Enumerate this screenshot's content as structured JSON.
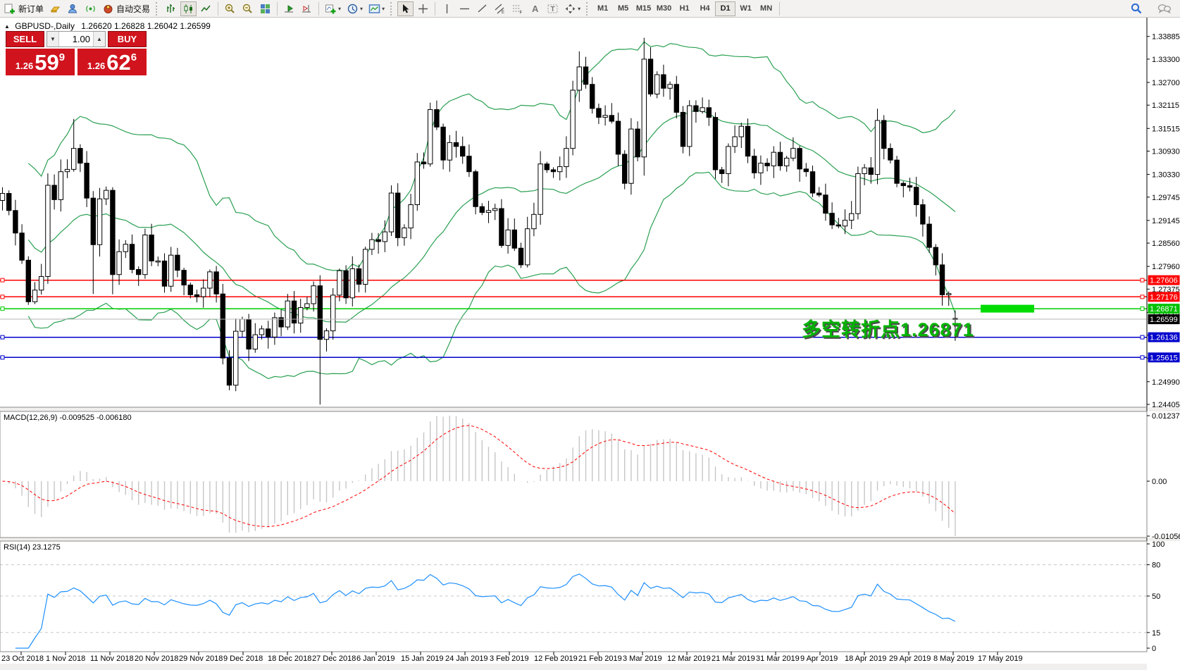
{
  "toolbar": {
    "new_order_label": "新订单",
    "autotrading_label": "自动交易",
    "timeframes": [
      "M1",
      "M5",
      "M15",
      "M30",
      "H1",
      "H4",
      "D1",
      "W1",
      "MN"
    ],
    "active_timeframe": "D1"
  },
  "chart": {
    "symbol_header": "GBPUSD-,Daily",
    "ohlc_line": "1.26620 1.26828 1.26042 1.26599",
    "trade_panel": {
      "sell_label": "SELL",
      "buy_label": "BUY",
      "volume": "1.00",
      "sell_price_prefix": "1.26",
      "sell_price_big": "59",
      "sell_price_sup": "9",
      "buy_price_prefix": "1.26",
      "buy_price_big": "62",
      "buy_price_sup": "6"
    }
  },
  "indicators": {
    "macd": {
      "label": "MACD(12,26,9) -0.009525 -0.006180",
      "axis": [
        "0.012371",
        "0.00",
        "-0.010568"
      ]
    },
    "rsi": {
      "label": "RSI(14) 23.1275",
      "axis": [
        [
          100,
          "100"
        ],
        [
          80,
          "80"
        ],
        [
          50,
          "50"
        ],
        [
          15,
          "15"
        ],
        [
          0,
          "0"
        ]
      ]
    }
  },
  "chart_data": {
    "type": "candlestick",
    "symbol": "GBPUSD-",
    "timeframe": "Daily",
    "last_ohlc": {
      "open": 1.2662,
      "high": 1.26828,
      "low": 1.26042,
      "close": 1.26599
    },
    "bid": {
      "price": 1.26599,
      "label": "1.26599",
      "line_color": "#b4b4b4",
      "label_bg": "#000000"
    },
    "annotation": {
      "text": "多空转折点1.26871",
      "price": 1.26871,
      "color": "#00b400"
    },
    "highlight_box": {
      "price": 1.26871,
      "color": "#00dc00"
    },
    "hlines": [
      {
        "price": 1.27606,
        "label": "1.27606",
        "color": "#ff0000"
      },
      {
        "price": 1.27176,
        "label": "1.27176",
        "color": "#ff0000"
      },
      {
        "price": 1.26871,
        "label": "1.26871",
        "color": "#00cc00"
      },
      {
        "price": 1.26136,
        "label": "1.26136",
        "color": "#0000cc"
      },
      {
        "price": 1.25615,
        "label": "1.25615",
        "color": "#0000cc"
      }
    ],
    "price_ticks": [
      1.33885,
      1.333,
      1.327,
      1.32115,
      1.31515,
      1.3093,
      1.3033,
      1.29745,
      1.29145,
      1.2856,
      1.2796,
      1.27375,
      1.26775,
      1.2619,
      1.2559,
      1.2499,
      1.24405
    ],
    "dates": [
      "23 Oct 2018",
      "1 Nov 2018",
      "11 Nov 2018",
      "20 Nov 2018",
      "29 Nov 2018",
      "9 Dec 2018",
      "18 Dec 2018",
      "27 Dec 2018",
      "6 Jan 2019",
      "15 Jan 2019",
      "24 Jan 2019",
      "3 Feb 2019",
      "12 Feb 2019",
      "21 Feb 2019",
      "3 Mar 2019",
      "12 Mar 2019",
      "21 Mar 2019",
      "31 Mar 2019",
      "9 Apr 2019",
      "18 Apr 2019",
      "29 Apr 2019",
      "8 May 2019",
      "17 May 2019"
    ],
    "bollinger": {
      "period": 20,
      "deviation": 2,
      "color": "#2aa052"
    },
    "macd": {
      "fast": 12,
      "slow": 26,
      "signal": 9,
      "current_macd": -0.009525,
      "current_signal": -0.00618,
      "axis_max": 0.012371,
      "axis_min": -0.010568,
      "histogram_color": "#c6c6c6",
      "signal_color": "#ff0000"
    },
    "rsi": {
      "period": 14,
      "current": 23.1275,
      "levels": [
        80,
        50,
        15
      ],
      "color": "#1e90ff"
    },
    "closes": [
      1.2984,
      1.294,
      1.2882,
      1.2812,
      1.2705,
      1.2735,
      1.277,
      1.3005,
      1.2968,
      1.304,
      1.3046,
      1.31,
      1.3062,
      1.2972,
      1.2852,
      1.297,
      1.2992,
      1.2775,
      1.2834,
      1.2853,
      1.2788,
      1.2775,
      1.2877,
      1.281,
      1.281,
      1.2745,
      1.2825,
      1.2786,
      1.2748,
      1.2723,
      1.2718,
      1.274,
      1.2782,
      1.2725,
      1.256,
      1.249,
      1.2629,
      1.266,
      1.2583,
      1.262,
      1.2635,
      1.2614,
      1.2664,
      1.264,
      1.2707,
      1.265,
      1.269,
      1.27,
      1.2746,
      1.2608,
      1.263,
      1.2722,
      1.2785,
      1.2715,
      1.279,
      1.275,
      1.284,
      1.2865,
      1.286,
      1.2885,
      1.2985,
      1.287,
      1.2895,
      1.2955,
      1.3065,
      1.306,
      1.32,
      1.3155,
      1.307,
      1.3115,
      1.3105,
      1.308,
      1.304,
      1.295,
      1.2935,
      1.294,
      1.2945,
      1.285,
      1.289,
      1.2843,
      1.28,
      1.2893,
      1.293,
      1.306,
      1.3045,
      1.304,
      1.3053,
      1.31,
      1.325,
      1.331,
      1.3265,
      1.3203,
      1.318,
      1.3185,
      1.317,
      1.3085,
      1.301,
      1.315,
      1.3078,
      1.333,
      1.324,
      1.329,
      1.3255,
      1.3265,
      1.3193,
      1.3105,
      1.321,
      1.3195,
      1.3205,
      1.318,
      1.3045,
      1.3035,
      1.3105,
      1.313,
      1.3157,
      1.308,
      1.3037,
      1.3062,
      1.3055,
      1.309,
      1.3055,
      1.3075,
      1.31,
      1.3047,
      1.304,
      1.2985,
      1.298,
      1.2933,
      1.2903,
      1.29,
      1.2915,
      1.2932,
      1.3035,
      1.305,
      1.3033,
      1.3172,
      1.31,
      1.307,
      1.301,
      1.3004,
      1.3,
      1.2955,
      1.2905,
      1.2845,
      1.28,
      1.2723,
      1.2726,
      1.26599
    ],
    "overrides": {
      "0": [
        1.2966,
        1.3,
        1.294,
        1.2984
      ],
      "4": [
        1.2812,
        1.2822,
        1.2697,
        1.2705
      ],
      "11": [
        1.3046,
        1.3176,
        1.304,
        1.31
      ],
      "14": [
        1.2972,
        1.299,
        1.2725,
        1.2852
      ],
      "17": [
        1.2992,
        1.3,
        1.2724,
        1.2775
      ],
      "35": [
        1.256,
        1.258,
        1.2477,
        1.249
      ],
      "49": [
        1.2746,
        1.2773,
        1.244,
        1.2608
      ],
      "66": [
        1.306,
        1.3218,
        1.3053,
        1.32
      ],
      "89": [
        1.325,
        1.335,
        1.322,
        1.331
      ],
      "99": [
        1.3078,
        1.3385,
        1.303,
        1.333
      ],
      "147": [
        1.2662,
        1.26828,
        1.26042,
        1.26599
      ]
    }
  }
}
